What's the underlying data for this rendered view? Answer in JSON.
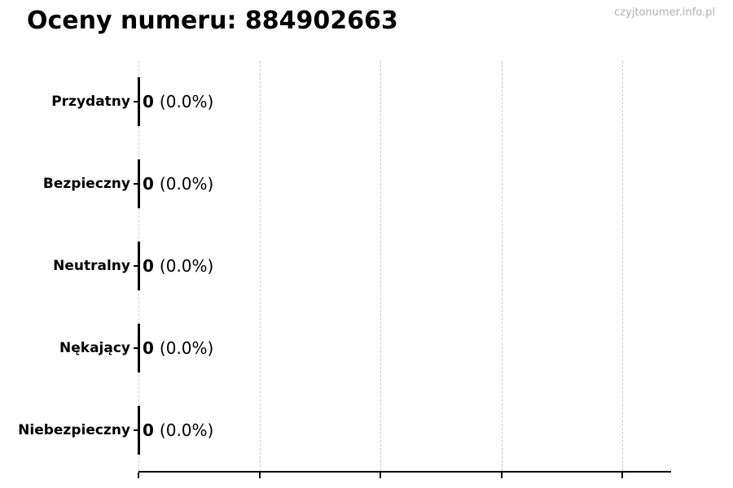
{
  "watermark": "czyjtonumer.info.pl",
  "colors": {
    "background": "#ffffff",
    "text": "#000000",
    "watermark": "#b0b0b0",
    "gridline": "#cccccc",
    "axis": "#000000",
    "bar": "#000000"
  },
  "chart_data": {
    "type": "bar",
    "orientation": "horizontal",
    "title": "Oceny numeru: 884902663",
    "categories": [
      "Przydatny",
      "Bezpieczny",
      "Neutralny",
      "Nękający",
      "Niebezpieczny"
    ],
    "values": [
      0,
      0,
      0,
      0,
      0
    ],
    "value_labels": [
      "0",
      "0",
      "0",
      "0",
      "0"
    ],
    "percent_labels": [
      "(0.0%)",
      "(0.0%)",
      "(0.0%)",
      "(0.0%)",
      "(0.0%)"
    ],
    "xlabel": "",
    "ylabel": "",
    "x_tick_count": 5,
    "x_tick_labels": [
      "",
      "",
      "",
      "",
      ""
    ],
    "grid": "vertical-dashed",
    "legend": "none"
  }
}
